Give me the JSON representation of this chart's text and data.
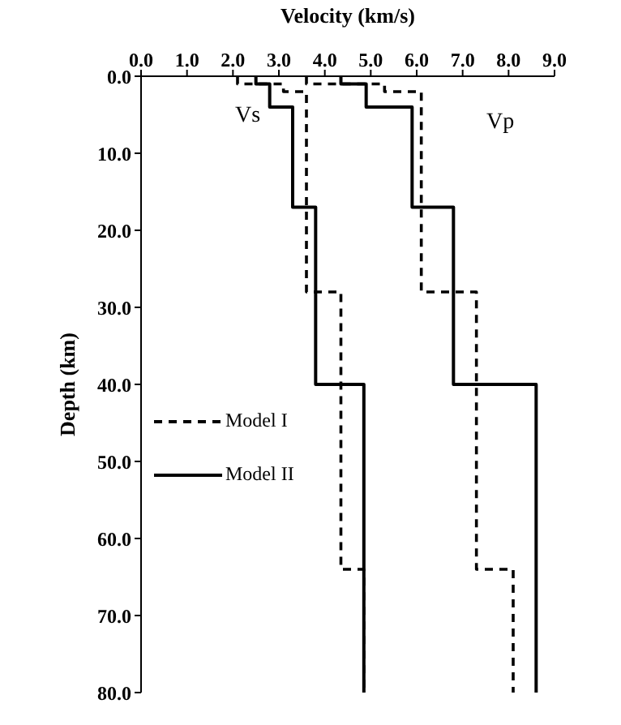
{
  "chart_data": {
    "type": "line",
    "xlabel": "Velocity (km/s)",
    "ylabel": "Depth (km)",
    "xlim": [
      0,
      9
    ],
    "xticks": [
      {
        "value": 0,
        "label": "0.0"
      },
      {
        "value": 1,
        "label": "1.0"
      },
      {
        "value": 2,
        "label": "2.0"
      },
      {
        "value": 3,
        "label": "3.0"
      },
      {
        "value": 4,
        "label": "4.0"
      },
      {
        "value": 5,
        "label": "5.0"
      },
      {
        "value": 6,
        "label": "6.0"
      },
      {
        "value": 7,
        "label": "7.0"
      },
      {
        "value": 8,
        "label": "8.0"
      },
      {
        "value": 9,
        "label": "9.0"
      }
    ],
    "ylim": [
      80,
      0
    ],
    "yticks": [
      {
        "value": 0,
        "label": "0.0"
      },
      {
        "value": 10,
        "label": "10.0"
      },
      {
        "value": 20,
        "label": "20.0"
      },
      {
        "value": 30,
        "label": "30.0"
      },
      {
        "value": 40,
        "label": "40.0"
      },
      {
        "value": 50,
        "label": "50.0"
      },
      {
        "value": 60,
        "label": "60.0"
      },
      {
        "value": 70,
        "label": "70.0"
      },
      {
        "value": 80,
        "label": "80.0"
      }
    ],
    "grid": false,
    "legend": "left",
    "marker": "none",
    "series": [
      {
        "name": "Model I",
        "color": "#000000",
        "line_style": "dashed",
        "x": [
          2.1,
          2.1,
          3.1,
          3.1,
          3.6,
          3.6,
          4.35,
          4.35,
          4.85,
          4.85
        ],
        "values": [
          0,
          1,
          1,
          2,
          2,
          28,
          28,
          64,
          64,
          80
        ]
      },
      {
        "color": "#000000",
        "line_style": "dashed",
        "x": [
          3.6,
          3.6,
          5.3,
          5.3,
          6.1,
          6.1,
          7.3,
          7.3,
          8.1,
          8.1
        ],
        "values": [
          0,
          1,
          1,
          2,
          2,
          28,
          28,
          64,
          64,
          80
        ]
      },
      {
        "name": "Model II",
        "color": "#000000",
        "line_style": "solid",
        "x": [
          2.5,
          2.5,
          2.8,
          2.8,
          3.3,
          3.3,
          3.8,
          3.8,
          4.85,
          4.85
        ],
        "values": [
          0,
          1,
          1,
          4,
          4,
          17,
          17,
          40,
          40,
          80
        ]
      },
      {
        "color": "#000000",
        "line_style": "solid",
        "x": [
          4.35,
          4.35,
          4.9,
          4.9,
          5.9,
          5.9,
          6.8,
          6.8,
          8.6,
          8.6
        ],
        "values": [
          0,
          1,
          1,
          4,
          4,
          17,
          17,
          40,
          40,
          80
        ]
      }
    ],
    "annotations": [
      "Vs",
      "Vp"
    ]
  }
}
